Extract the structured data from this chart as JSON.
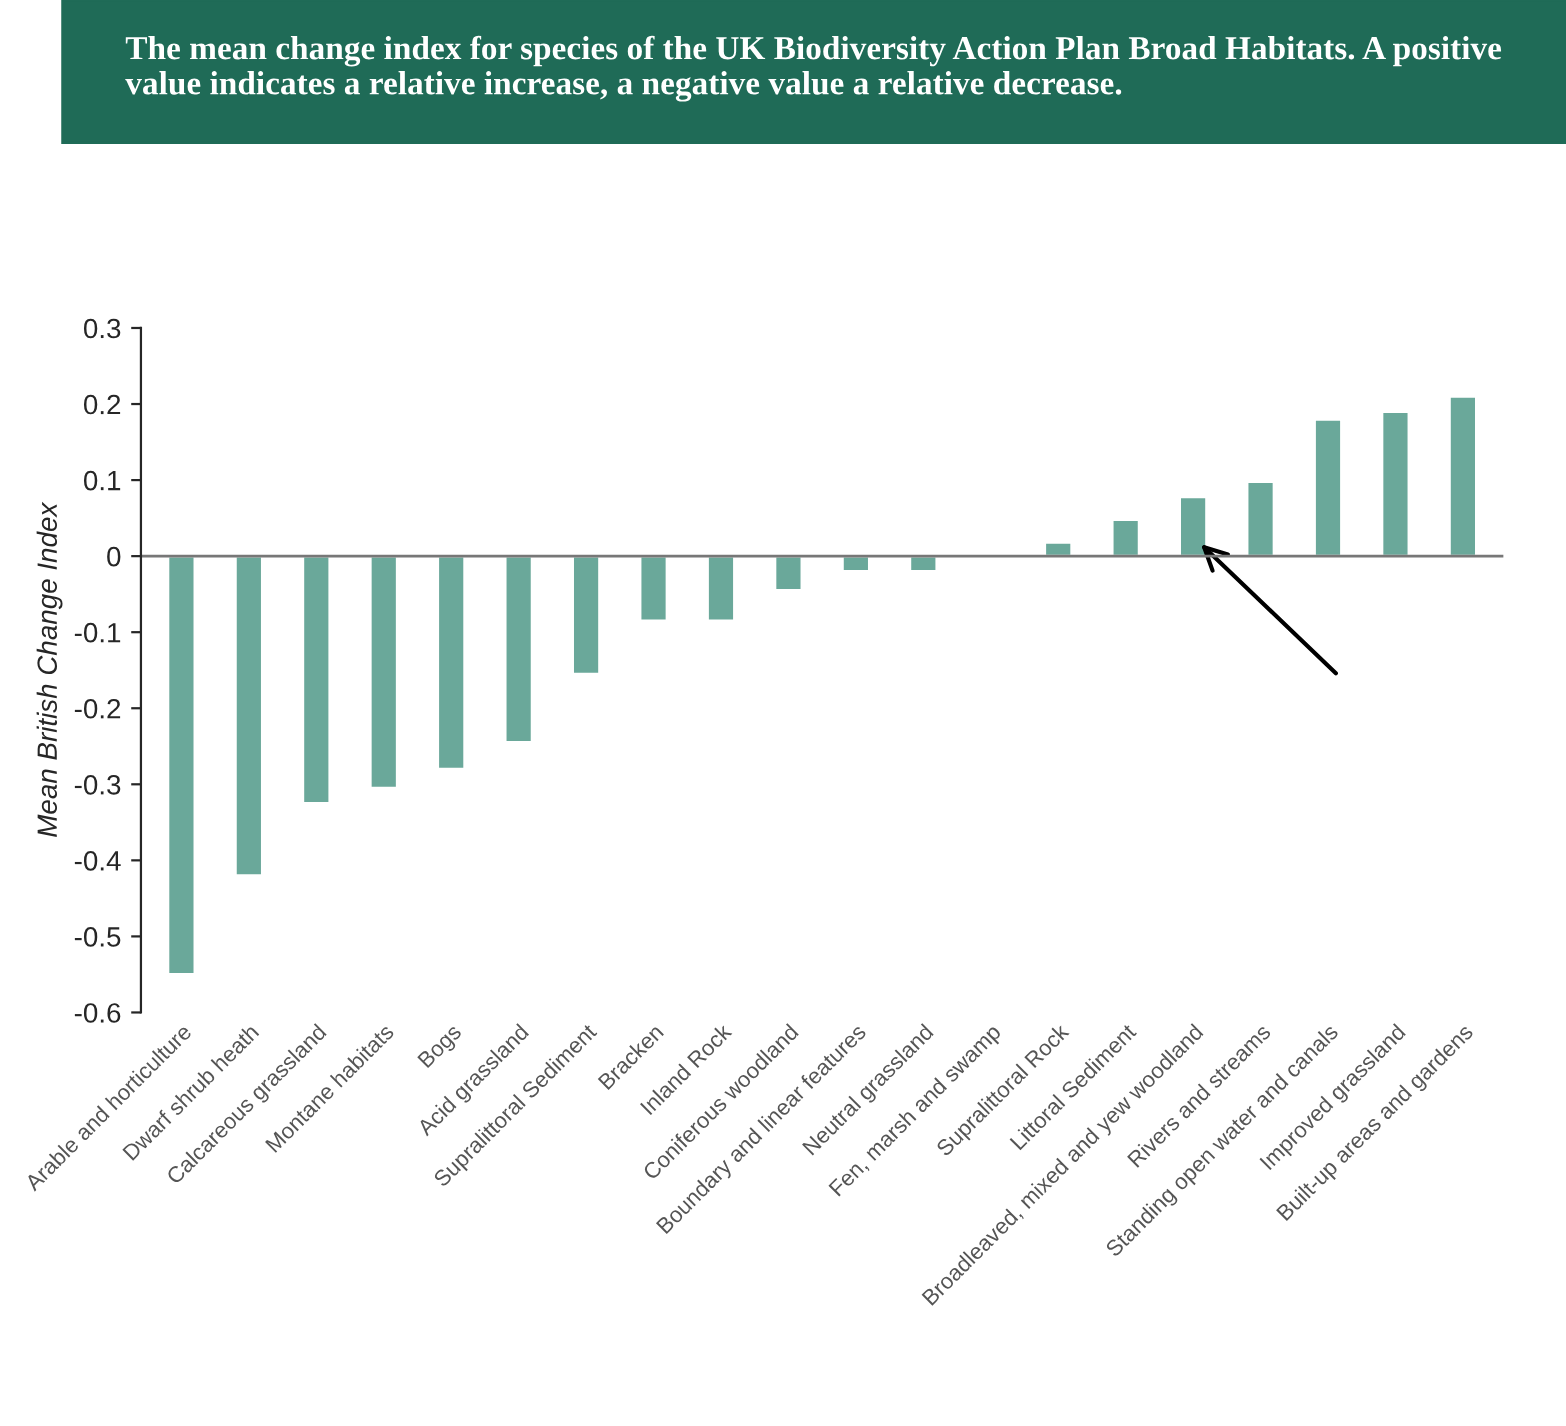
{
  "chart_data": {
    "type": "bar",
    "title": "The mean change index for species of the UK Biodiversity Action Plan Broad Habitats. A positive value indicates a relative increase, a negative value a relative decrease.",
    "ylabel": "Mean British Change Index",
    "categories": [
      "Arable and horticulture",
      "Dwarf shrub heath",
      "Calcareous grassland",
      "Montane habitats",
      "Bogs",
      "Acid grassland",
      "Supralittoral Sediment",
      "Bracken",
      "Inland Rock",
      "Coniferous woodland",
      "Boundary and linear features",
      "Neutral grassland",
      "Fen, marsh and swamp",
      "Supralittoral Rock",
      "Littoral Sediment",
      "Broadleaved, mixed and yew woodland",
      "Rivers and streams",
      "Standing open water and canals",
      "Improved grassland",
      "Built-up areas and gardens"
    ],
    "values": [
      -0.55,
      -0.42,
      -0.325,
      -0.305,
      -0.28,
      -0.245,
      -0.155,
      -0.085,
      -0.085,
      -0.045,
      -0.02,
      -0.02,
      0.003,
      0.018,
      0.048,
      0.078,
      0.098,
      0.18,
      0.19,
      0.21
    ],
    "color": "#6aa89a",
    "ylim": [
      -0.6,
      0.3
    ],
    "yticks": [
      -0.6,
      -0.5,
      -0.4,
      -0.3,
      -0.2,
      -0.1,
      0,
      0.1,
      0.2,
      0.3
    ],
    "grid": false,
    "ref_lines": [
      {
        "axis": "y",
        "value": 0,
        "color": "#777777"
      }
    ]
  }
}
